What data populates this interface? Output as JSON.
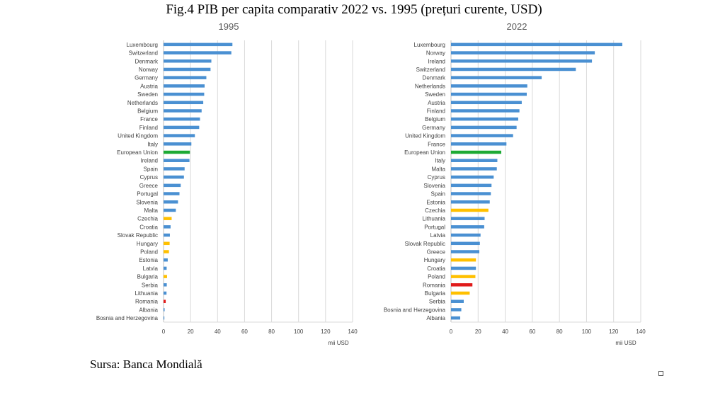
{
  "title": "Fig.4 PIB per capita comparativ 2022 vs. 1995 (prețuri curente, USD)",
  "source": "Sursa: Banca Mondială",
  "colors": {
    "default": "#4a90d2",
    "eu": "#1daa35",
    "highlight": "#ffc000",
    "romania": "#e01b1b",
    "grid": "#d9d9d9",
    "axis": "#bfbfbf",
    "text": "#404040"
  },
  "chart_data": [
    {
      "type": "bar",
      "orientation": "horizontal",
      "title": "1995",
      "xlabel": "mii USD",
      "xlim": [
        0,
        140
      ],
      "xticks": [
        "0",
        "20",
        "40",
        "60",
        "80",
        "100",
        "120",
        "140"
      ],
      "grid": true,
      "categories": [
        "Luxembourg",
        "Switzerland",
        "Denmark",
        "Norway",
        "Germany",
        "Austria",
        "Sweden",
        "Netherlands",
        "Belgium",
        "France",
        "Finland",
        "United Kingdom",
        "Italy",
        "European Union",
        "Ireland",
        "Spain",
        "Cyprus",
        "Greece",
        "Portugal",
        "Slovenia",
        "Malta",
        "Czechia",
        "Croatia",
        "Slovak Republic",
        "Hungary",
        "Poland",
        "Estonia",
        "Latvia",
        "Bulgaria",
        "Serbia",
        "Lithuania",
        "Romania",
        "Albania",
        "Bosnia and Herzegovina"
      ],
      "values": [
        51.0,
        50.2,
        35.4,
        34.8,
        31.7,
        30.4,
        30.1,
        29.4,
        28.2,
        27.0,
        26.4,
        23.2,
        20.6,
        19.5,
        19.2,
        15.6,
        15.1,
        12.7,
        11.8,
        10.7,
        9.1,
        6.0,
        5.2,
        4.7,
        4.5,
        4.0,
        3.1,
        2.3,
        2.6,
        2.4,
        2.2,
        1.6,
        0.8,
        0.6
      ],
      "bar_colors": [
        "default",
        "default",
        "default",
        "default",
        "default",
        "default",
        "default",
        "default",
        "default",
        "default",
        "default",
        "default",
        "default",
        "eu",
        "default",
        "default",
        "default",
        "default",
        "default",
        "default",
        "default",
        "highlight",
        "default",
        "default",
        "highlight",
        "highlight",
        "default",
        "default",
        "highlight",
        "default",
        "default",
        "romania",
        "default",
        "default"
      ]
    },
    {
      "type": "bar",
      "orientation": "horizontal",
      "title": "2022",
      "xlabel": "mii USD",
      "xlim": [
        0,
        140
      ],
      "xticks": [
        "0",
        "20",
        "40",
        "60",
        "80",
        "100",
        "120",
        "140"
      ],
      "grid": true,
      "categories": [
        "Luxembourg",
        "Norway",
        "Ireland",
        "Switzerland",
        "Denmark",
        "Netherlands",
        "Sweden",
        "Austria",
        "Finland",
        "Belgium",
        "Germany",
        "United Kingdom",
        "France",
        "European Union",
        "Italy",
        "Malta",
        "Cyprus",
        "Slovenia",
        "Spain",
        "Estonia",
        "Czechia",
        "Lithuania",
        "Portugal",
        "Latvia",
        "Slovak Republic",
        "Greece",
        "Hungary",
        "Croatia",
        "Poland",
        "Romania",
        "Bulgaria",
        "Serbia",
        "Bosnia and Herzegovina",
        "Albania"
      ],
      "values": [
        126.4,
        106.1,
        104.0,
        92.1,
        66.9,
        56.3,
        55.9,
        52.2,
        50.5,
        49.6,
        48.4,
        45.8,
        40.9,
        37.1,
        34.2,
        33.8,
        31.5,
        29.9,
        29.4,
        28.6,
        27.6,
        24.8,
        24.5,
        21.8,
        21.3,
        20.9,
        18.4,
        18.4,
        18.0,
        15.8,
        13.8,
        9.4,
        7.6,
        6.8
      ],
      "bar_colors": [
        "default",
        "default",
        "default",
        "default",
        "default",
        "default",
        "default",
        "default",
        "default",
        "default",
        "default",
        "default",
        "default",
        "eu",
        "default",
        "default",
        "default",
        "default",
        "default",
        "default",
        "highlight",
        "default",
        "default",
        "default",
        "default",
        "default",
        "highlight",
        "default",
        "highlight",
        "romania",
        "highlight",
        "default",
        "default",
        "default"
      ]
    }
  ]
}
